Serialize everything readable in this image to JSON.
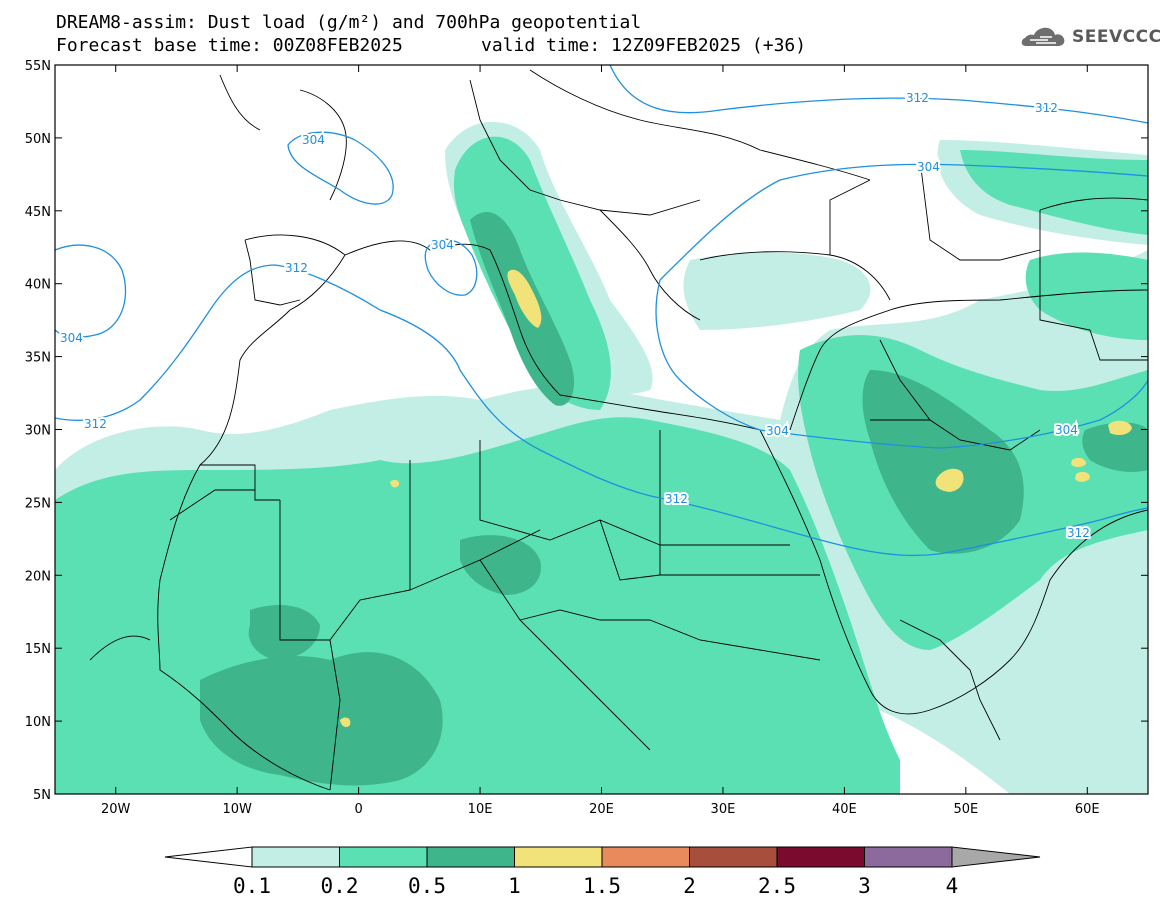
{
  "header": {
    "line1": "DREAM8-assim: Dust load (g/m²) and 700hPa geopotential",
    "line2": "Forecast base time: 00Z08FEB2025",
    "valid": "valid time: 12Z09FEB2025 (+36)"
  },
  "logo": {
    "text": "SEEVCCC",
    "icon": "cloud-icon"
  },
  "map": {
    "lon_range": [
      -25,
      65
    ],
    "lat_range": [
      5,
      55
    ],
    "lat_ticks": [
      "5N",
      "10N",
      "15N",
      "20N",
      "25N",
      "30N",
      "35N",
      "40N",
      "45N",
      "50N",
      "55N"
    ],
    "lon_ticks": [
      "20W",
      "10W",
      "0",
      "10E",
      "20E",
      "30E",
      "40E",
      "50E",
      "60E"
    ],
    "contour_labels": [
      "312",
      "312",
      "304",
      "304",
      "312",
      "304",
      "312",
      "312",
      "304",
      "312"
    ],
    "colors": {
      "contour": "#1e90e0",
      "border": "#000000"
    }
  },
  "colorbar": {
    "labels": [
      "0.1",
      "0.2",
      "0.5",
      "1",
      "1.5",
      "2",
      "2.5",
      "3",
      "4"
    ],
    "colors": [
      "#ffffff",
      "#c2eee6",
      "#5be0b3",
      "#3eb58a",
      "#f2e27a",
      "#e98a5c",
      "#a84e3c",
      "#7a0b2e",
      "#8c6a9e",
      "#a8a8a8"
    ]
  }
}
